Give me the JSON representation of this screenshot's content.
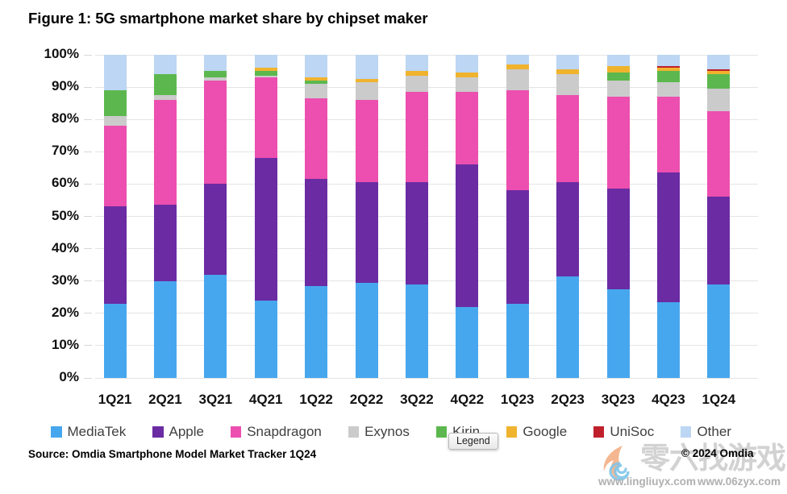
{
  "title": "Figure 1: 5G smartphone market share by chipset maker",
  "source": "Source: Omdia Smartphone Model Market Tracker 1Q24",
  "copyright": "© 2024 Omdia",
  "tooltip": "Legend",
  "watermark": {
    "text": "零六找游戏",
    "url_left": "www.lingliuyx.com",
    "url_right": "www.06zyx.com"
  },
  "chart_data": {
    "type": "bar",
    "stacked": true,
    "title": "Figure 1: 5G smartphone market share by chipset maker",
    "xlabel": "",
    "ylabel": "",
    "ylim": [
      0,
      100
    ],
    "grid": true,
    "legend_position": "bottom",
    "yticks": [
      "0%",
      "10%",
      "20%",
      "30%",
      "40%",
      "50%",
      "60%",
      "70%",
      "80%",
      "90%",
      "100%"
    ],
    "categories": [
      "1Q21",
      "2Q21",
      "3Q21",
      "4Q21",
      "1Q22",
      "2Q22",
      "3Q22",
      "4Q22",
      "1Q23",
      "2Q23",
      "3Q23",
      "4Q23",
      "1Q24"
    ],
    "series": [
      {
        "name": "MediaTek",
        "color": "#47A7EE",
        "values": [
          23,
          30,
          32,
          24,
          28.5,
          29.5,
          29,
          22,
          23,
          31.5,
          27.5,
          23.5,
          29
        ]
      },
      {
        "name": "Apple",
        "color": "#6B2BA3",
        "values": [
          30,
          23.5,
          28,
          44,
          33,
          31,
          31.5,
          44,
          35,
          29,
          31,
          40,
          27
        ]
      },
      {
        "name": "Snapdragon",
        "color": "#EC4FAF",
        "values": [
          25,
          32.5,
          32,
          25,
          25,
          25.5,
          28,
          22.5,
          31,
          27,
          28.5,
          23.5,
          26.5
        ]
      },
      {
        "name": "Exynos",
        "color": "#CBCBCB",
        "values": [
          3,
          1.5,
          1,
          0.5,
          4.5,
          5.5,
          5,
          4.5,
          6.5,
          6.5,
          5,
          4.5,
          7
        ]
      },
      {
        "name": "Kirin",
        "color": "#5CB84E",
        "values": [
          8,
          6.5,
          2,
          1.5,
          1,
          0,
          0,
          0,
          0,
          0,
          2.5,
          3.5,
          4.5
        ]
      },
      {
        "name": "Google",
        "color": "#F0B32E",
        "values": [
          0,
          0,
          0,
          1,
          1,
          1,
          1.5,
          1.5,
          1.5,
          1.5,
          2,
          1,
          1
        ]
      },
      {
        "name": "UniSoc",
        "color": "#C0202C",
        "values": [
          0,
          0,
          0,
          0,
          0,
          0,
          0,
          0,
          0,
          0,
          0,
          0.5,
          0.5
        ]
      },
      {
        "name": "Other",
        "color": "#BCD6F4",
        "values": [
          11,
          6,
          5,
          4,
          7,
          7.5,
          5,
          5.5,
          3,
          4.5,
          3.5,
          3.5,
          4.5
        ]
      }
    ]
  }
}
